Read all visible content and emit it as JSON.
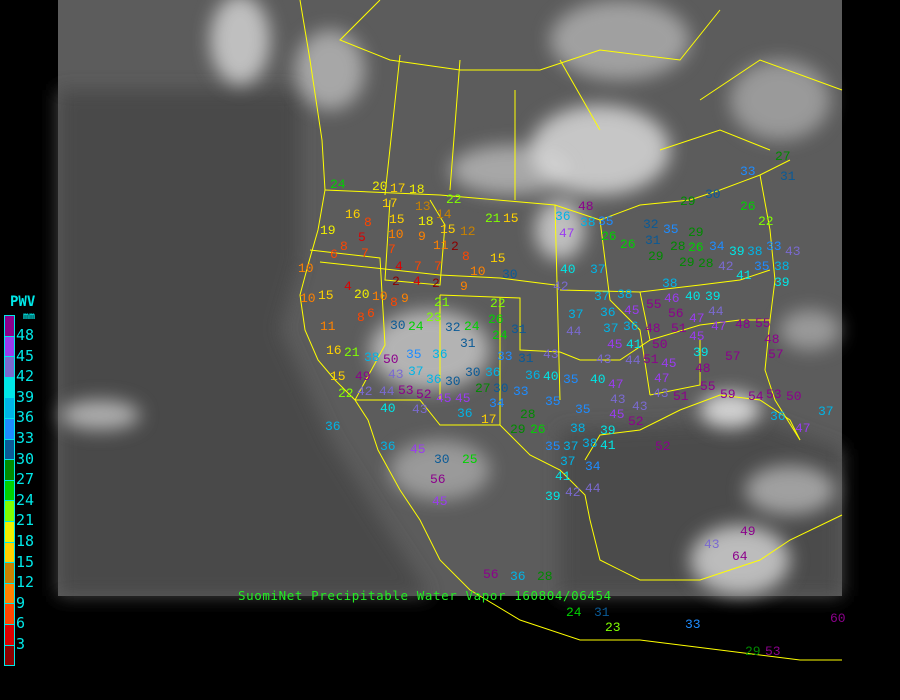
{
  "caption": "SuomiNet Precipitable Water Vapor 160804/06454",
  "legend": {
    "title": "PWV",
    "unit": "mm",
    "ticks": [
      "48",
      "45",
      "42",
      "39",
      "36",
      "33",
      "30",
      "27",
      "24",
      "21",
      "18",
      "15",
      "12",
      "9",
      "6",
      "3"
    ],
    "colors": [
      "#8c008c",
      "#9a3cf0",
      "#7a6ad0",
      "#00e6e6",
      "#00b4e6",
      "#1e8cff",
      "#0a5a96",
      "#008a00",
      "#00d200",
      "#80ff00",
      "#f0f000",
      "#ffd200",
      "#c88200",
      "#ff8200",
      "#ff4600",
      "#dc0000",
      "#8c0000"
    ]
  },
  "colors": {
    "borders": "#ffff00",
    "background": "#5c5c5c"
  },
  "stations": [
    "24",
    "20",
    "17",
    "18",
    "13",
    "22",
    "17",
    "18",
    "15",
    "14",
    "15",
    "21",
    "15",
    "16",
    "8",
    "19",
    "5",
    "10",
    "9",
    "11",
    "12",
    "8",
    "7",
    "6",
    "7",
    "2",
    "8",
    "15",
    "4",
    "7",
    "7",
    "10",
    "4",
    "2",
    "4",
    "2",
    "9",
    "30",
    "10",
    "15",
    "20",
    "10",
    "6",
    "8",
    "9",
    "8",
    "22",
    "26",
    "21",
    "23",
    "30",
    "24",
    "32",
    "24",
    "31",
    "24",
    "31",
    "35",
    "36",
    "21",
    "38",
    "50",
    "43",
    "49",
    "42",
    "37",
    "36",
    "30",
    "53",
    "52",
    "45",
    "43",
    "45",
    "44",
    "40",
    "30",
    "36",
    "30",
    "27",
    "34",
    "36",
    "17",
    "31",
    "36",
    "33",
    "28",
    "29",
    "26",
    "36",
    "45",
    "30",
    "25",
    "56",
    "36",
    "15",
    "22",
    "11",
    "16",
    "10",
    "36",
    "48",
    "47",
    "38",
    "35",
    "40",
    "37",
    "42",
    "37",
    "37",
    "44",
    "36",
    "37",
    "38",
    "31",
    "35",
    "26",
    "28",
    "29",
    "26",
    "29",
    "28",
    "29",
    "32",
    "26",
    "29",
    "30",
    "26",
    "22",
    "34",
    "39",
    "38",
    "35",
    "33",
    "38",
    "41",
    "39",
    "42",
    "40",
    "39",
    "38",
    "46",
    "55",
    "56",
    "51",
    "47",
    "44",
    "47",
    "48",
    "50",
    "45",
    "36",
    "41",
    "45",
    "51",
    "45",
    "39",
    "48",
    "55",
    "48",
    "57",
    "43",
    "43",
    "33",
    "40",
    "35",
    "40",
    "43",
    "44",
    "45",
    "47",
    "48",
    "57",
    "43",
    "51",
    "55",
    "59",
    "54",
    "53",
    "50",
    "47",
    "43",
    "43",
    "45",
    "35",
    "35",
    "38",
    "39",
    "52",
    "52",
    "36",
    "47",
    "37",
    "35",
    "37",
    "38",
    "41",
    "37",
    "34",
    "41",
    "42",
    "44",
    "39",
    "49",
    "43",
    "64",
    "56",
    "36",
    "28",
    "24",
    "31",
    "23",
    "33",
    "60",
    "29",
    "53",
    "45",
    "33",
    "27",
    "31"
  ]
}
